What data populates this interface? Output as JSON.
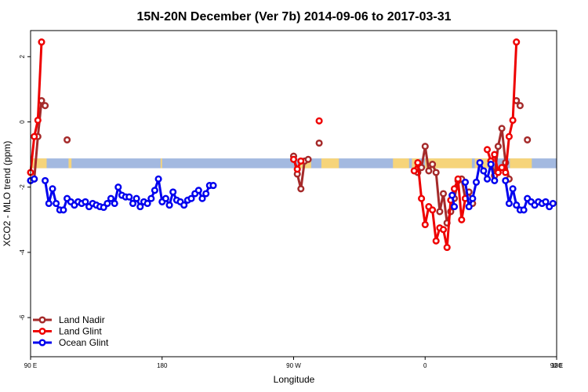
{
  "chart_data": {
    "type": "line",
    "title": "15N-20N December (Ver 7b)   2014-09-06 to 2017-03-31",
    "xlabel": "Longitude",
    "ylabel": "XCO2 - MLO trend (ppm)",
    "xlim": [
      90,
      450
    ],
    "ylim": [
      -7.2,
      2.8
    ],
    "x_ticks": [
      {
        "value": 90,
        "label": "90 E"
      },
      {
        "value": 180,
        "label": "180"
      },
      {
        "value": 270,
        "label": "90 W"
      },
      {
        "value": 360,
        "label": "0"
      },
      {
        "value": 450,
        "label": "90 E"
      },
      {
        "value": 540,
        "label": "180"
      }
    ],
    "y_ticks": [
      2,
      0,
      -2,
      -4,
      -6
    ],
    "grid": false,
    "legend_position": "bottom-left",
    "land_band": {
      "y_min": -1.42,
      "y_max": -1.12,
      "ocean_color": "#a3b9e0",
      "land_color": "#f6d47a"
    },
    "series": [
      {
        "name": "Land Nadir",
        "color": "#a52a2a",
        "segments": [
          [
            [
              92.5,
              -1.75
            ],
            [
              95,
              -0.45
            ],
            [
              97.5,
              0.65
            ],
            [
              100,
              0.5
            ]
          ],
          [
            [
              115,
              -0.55
            ]
          ],
          [
            [
              270,
              -1.05
            ],
            [
              272.5,
              -1.6
            ],
            [
              275,
              -2.05
            ],
            [
              277.5,
              -1.2
            ],
            [
              280,
              -1.15
            ]
          ],
          [
            [
              287.5,
              -0.65
            ]
          ],
          [
            [
              355,
              -1.55
            ],
            [
              357.5,
              -1.4
            ],
            [
              360,
              -0.75
            ],
            [
              362.5,
              -1.5
            ],
            [
              365,
              -1.3
            ],
            [
              367.5,
              -1.55
            ],
            [
              370,
              -2.75
            ],
            [
              372.5,
              -2.2
            ],
            [
              375,
              -3.1
            ],
            [
              377.5,
              -2.75
            ],
            [
              380,
              -2.35
            ],
            [
              382.5,
              -1.8
            ],
            [
              385,
              -1.75
            ],
            [
              387.5,
              -2.35
            ],
            [
              390,
              -2.15
            ],
            [
              392.5,
              -2.5
            ]
          ],
          [
            [
              405,
              -1.2
            ],
            [
              407.5,
              -1.65
            ],
            [
              410,
              -0.75
            ],
            [
              412.5,
              -0.2
            ],
            [
              415,
              -1.25
            ],
            [
              417.5,
              -1.75
            ]
          ],
          [
            [
              422.5,
              0.65
            ],
            [
              425,
              0.5
            ]
          ],
          [
            [
              430,
              -0.55
            ]
          ]
        ]
      },
      {
        "name": "Land Glint",
        "color": "#ee0000",
        "segments": [
          [
            [
              90,
              -1.55
            ],
            [
              92.5,
              -0.45
            ],
            [
              95,
              0.05
            ],
            [
              97.5,
              2.45
            ]
          ],
          [
            [
              270,
              -1.15
            ],
            [
              272.5,
              -1.45
            ],
            [
              275,
              -1.2
            ]
          ],
          [
            [
              287.5,
              0.03
            ]
          ],
          [
            [
              352.5,
              -1.5
            ],
            [
              355,
              -1.25
            ],
            [
              357.5,
              -2.35
            ],
            [
              360,
              -3.15
            ],
            [
              362.5,
              -2.6
            ],
            [
              365,
              -2.7
            ],
            [
              367.5,
              -3.65
            ],
            [
              370,
              -3.25
            ],
            [
              372.5,
              -3.3
            ],
            [
              375,
              -3.85
            ],
            [
              377.5,
              -2.4
            ],
            [
              380,
              -2.05
            ],
            [
              382.5,
              -1.75
            ],
            [
              385,
              -3.0
            ],
            [
              387.5,
              -2.35
            ]
          ],
          [
            [
              402.5,
              -0.85
            ],
            [
              405,
              -1.2
            ],
            [
              407.5,
              -1.0
            ],
            [
              410,
              -1.55
            ],
            [
              412.5,
              -1.4
            ],
            [
              415,
              -1.55
            ],
            [
              417.5,
              -0.45
            ],
            [
              420,
              0.05
            ],
            [
              422.5,
              2.45
            ]
          ]
        ]
      },
      {
        "name": "Ocean Glint",
        "color": "#0000ee",
        "segments": [
          [
            [
              90,
              -1.8
            ],
            [
              92.5,
              -1.75
            ]
          ],
          [
            [
              100,
              -1.8
            ],
            [
              102.5,
              -2.5
            ],
            [
              105,
              -2.05
            ],
            [
              107.5,
              -2.5
            ],
            [
              110,
              -2.7
            ],
            [
              112.5,
              -2.7
            ],
            [
              115,
              -2.35
            ],
            [
              117.5,
              -2.45
            ],
            [
              120,
              -2.55
            ],
            [
              122.5,
              -2.45
            ],
            [
              125,
              -2.5
            ],
            [
              127.5,
              -2.45
            ],
            [
              130,
              -2.6
            ],
            [
              132.5,
              -2.5
            ],
            [
              135,
              -2.55
            ],
            [
              137.5,
              -2.6
            ],
            [
              140,
              -2.62
            ],
            [
              142.5,
              -2.5
            ],
            [
              145,
              -2.35
            ],
            [
              147.5,
              -2.5
            ],
            [
              150,
              -2.0
            ],
            [
              152.5,
              -2.25
            ],
            [
              155,
              -2.3
            ],
            [
              157.5,
              -2.3
            ],
            [
              160,
              -2.5
            ],
            [
              162.5,
              -2.35
            ],
            [
              165,
              -2.6
            ],
            [
              167.5,
              -2.45
            ],
            [
              170,
              -2.5
            ],
            [
              172.5,
              -2.35
            ],
            [
              175,
              -2.1
            ],
            [
              177.5,
              -1.75
            ],
            [
              180,
              -2.45
            ],
            [
              182.5,
              -2.35
            ],
            [
              185,
              -2.55
            ],
            [
              187.5,
              -2.15
            ],
            [
              190,
              -2.4
            ],
            [
              192.5,
              -2.45
            ],
            [
              195,
              -2.55
            ],
            [
              197.5,
              -2.4
            ],
            [
              200,
              -2.35
            ],
            [
              202.5,
              -2.2
            ],
            [
              205,
              -2.1
            ],
            [
              207.5,
              -2.35
            ],
            [
              210,
              -2.2
            ],
            [
              212.5,
              -1.95
            ],
            [
              215,
              -1.95
            ]
          ],
          [
            [
              378.5,
              -2.25
            ],
            [
              380,
              -2.6
            ]
          ],
          [
            [
              387.5,
              -1.85
            ],
            [
              390,
              -2.6
            ],
            [
              392.5,
              -2.35
            ],
            [
              395,
              -1.85
            ],
            [
              397.5,
              -1.25
            ],
            [
              400,
              -1.5
            ],
            [
              402.5,
              -1.75
            ],
            [
              405,
              -1.3
            ],
            [
              407.5,
              -1.8
            ]
          ],
          [
            [
              415,
              -1.8
            ],
            [
              417.5,
              -2.5
            ],
            [
              420,
              -2.05
            ],
            [
              422.5,
              -2.55
            ],
            [
              425,
              -2.7
            ],
            [
              427.5,
              -2.7
            ],
            [
              430,
              -2.35
            ],
            [
              432.5,
              -2.45
            ],
            [
              435,
              -2.55
            ],
            [
              437.5,
              -2.45
            ],
            [
              440,
              -2.5
            ],
            [
              442.5,
              -2.45
            ],
            [
              445,
              -2.6
            ],
            [
              447.5,
              -2.5
            ]
          ]
        ]
      }
    ]
  }
}
